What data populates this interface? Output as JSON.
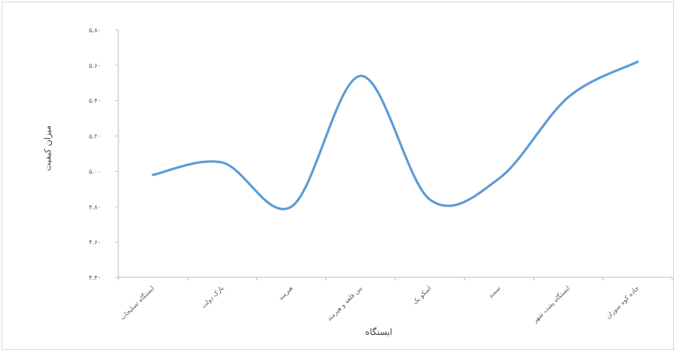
{
  "chart_data": {
    "type": "line",
    "title": "",
    "xlabel": "ایستگاه",
    "ylabel": "میزان کیفیت",
    "ylim": [
      4.4,
      5.8
    ],
    "y_ticks": [
      "۵.۸۰",
      "۵.۶۰",
      "۵.۴۰",
      "۵.۲۰",
      "۵.۰۰",
      "۴.۸۰",
      "۴.۶۰",
      "۴.۴۰"
    ],
    "categories": [
      "ایستگاه تسلیحات",
      "پارک دولت",
      "هیرمند",
      "بین قلعه و هیرمند",
      "اسکو بک",
      "سمند",
      "ایستگاه پشت شهر",
      "جاده کوه سوزان"
    ],
    "series": [
      {
        "values": [
          4.98,
          5.05,
          4.8,
          5.54,
          4.84,
          4.96,
          5.42,
          5.62
        ],
        "color": "#5b9bd5"
      }
    ],
    "smooth": true,
    "grid": false,
    "legend": "none"
  }
}
